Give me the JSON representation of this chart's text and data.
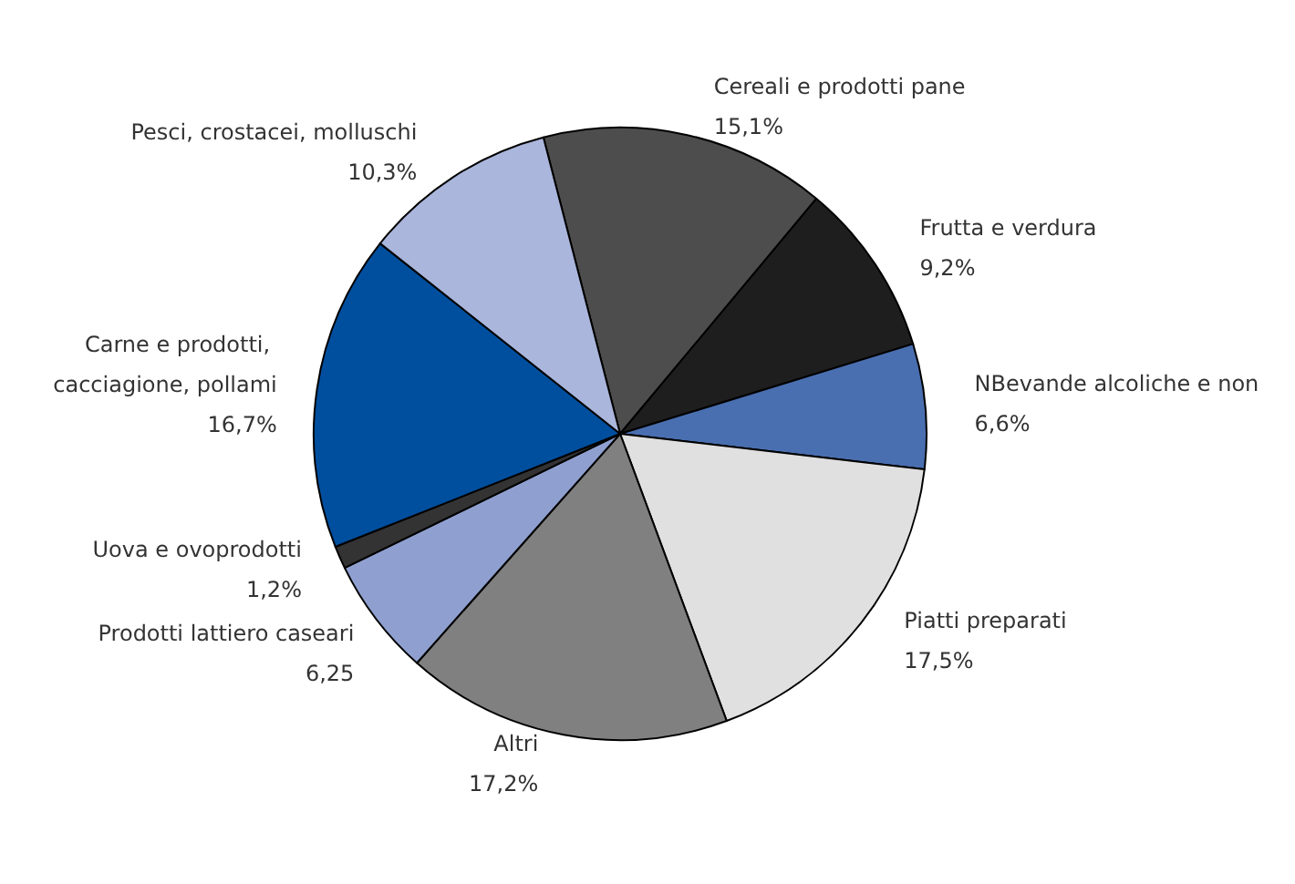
{
  "chart_data": {
    "type": "pie",
    "categories": [
      "Cereali e prodotti pane",
      "Frutta e verdura",
      "NBevande alcoliche e non",
      "Piatti preparati",
      "Altri",
      "Prodotti lattiero caseari",
      "Uova e ovoprodotti",
      "Carne e prodotti, cacciagione, pollami",
      "Pesci, crostacei, molluschi"
    ],
    "values": [
      15.1,
      9.2,
      6.6,
      17.5,
      17.2,
      6.25,
      1.2,
      16.7,
      10.3
    ],
    "value_labels": [
      "15,1%",
      "9,2%",
      "6,6%",
      "17,5%",
      "17,2%",
      "6,25",
      "1,2%",
      "16,7%",
      "10,3%"
    ],
    "colors": [
      "#4d4d4d",
      "#1e1e1e",
      "#4a6fb0",
      "#e0e0e0",
      "#808080",
      "#8fa0d0",
      "#333333",
      "#004f9e",
      "#aab6dc"
    ],
    "legend": false
  }
}
